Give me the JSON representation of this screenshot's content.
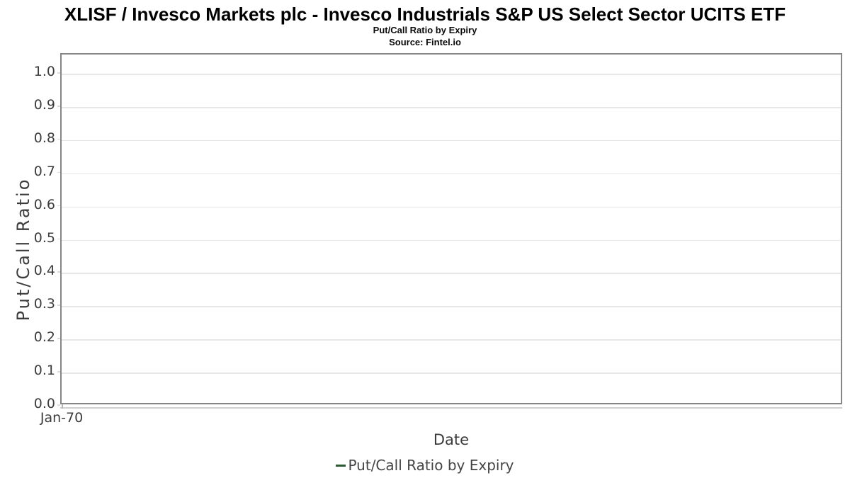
{
  "chart_data": {
    "type": "line",
    "title": "XLISF / Invesco Markets plc - Invesco Industrials S&P US Select Sector UCITS ETF",
    "subtitle": "Put/Call Ratio by Expiry",
    "source": "Source: Fintel.io",
    "xlabel": "Date",
    "ylabel": "Put/Call Ratio",
    "xticks": [
      "Jan-70"
    ],
    "yticks": [
      "0.0",
      "0.1",
      "0.2",
      "0.3",
      "0.4",
      "0.5",
      "0.6",
      "0.7",
      "0.8",
      "0.9",
      "1.0"
    ],
    "ylim": [
      0,
      1.058
    ],
    "grid": true,
    "legend_position": "bottom",
    "x": [],
    "series": [
      {
        "name": "Put/Call Ratio by Expiry",
        "color": "#2c5b33",
        "values": []
      }
    ]
  }
}
